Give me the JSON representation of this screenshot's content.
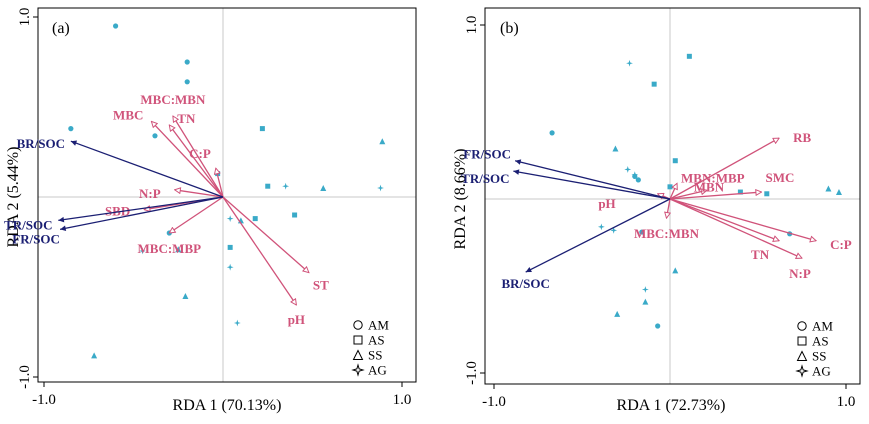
{
  "colors": {
    "env": "#d0537a",
    "resp": "#1b1f73",
    "points": "#3aaac8"
  },
  "chart_data": [
    {
      "type": "scatter",
      "panel_label": "(a)",
      "xlabel": "RDA 1 (70.13%)",
      "ylabel": "RDA 2 (5.44%)",
      "xlim": [
        -1.0,
        1.0
      ],
      "ylim": [
        -1.0,
        1.0
      ],
      "xticks": [
        -1.0,
        1.0
      ],
      "xtick_labels": [
        "-1.0",
        "1.0"
      ],
      "yticks": [
        -1.0,
        1.0
      ],
      "ytick_labels": [
        "-1.0",
        "1.0"
      ],
      "legend": {
        "position": "bottom-right",
        "entries": [
          {
            "label": "AM",
            "marker": "circle"
          },
          {
            "label": "AS",
            "marker": "square"
          },
          {
            "label": "SS",
            "marker": "triangle"
          },
          {
            "label": "AG",
            "marker": "star"
          }
        ]
      },
      "env_arrows": [
        {
          "label": "MBC:MBN",
          "x": -0.28,
          "y": 0.45
        },
        {
          "label": "MBC",
          "x": -0.4,
          "y": 0.42
        },
        {
          "label": "TN",
          "x": -0.3,
          "y": 0.4
        },
        {
          "label": "C:P",
          "x": -0.04,
          "y": 0.16
        },
        {
          "label": "N:P",
          "x": -0.27,
          "y": 0.04
        },
        {
          "label": "SBD",
          "x": -0.44,
          "y": -0.07
        },
        {
          "label": "MBC:MBP",
          "x": -0.3,
          "y": -0.2
        },
        {
          "label": "ST",
          "x": 0.48,
          "y": -0.42
        },
        {
          "label": "pH",
          "x": 0.41,
          "y": -0.6
        }
      ],
      "response_arrows": [
        {
          "label": "BR/SOC",
          "x": -0.85,
          "y": 0.31
        },
        {
          "label": "TR/SOC",
          "x": -0.92,
          "y": -0.13
        },
        {
          "label": "FR/SOC",
          "x": -0.91,
          "y": -0.18
        }
      ],
      "points": [
        {
          "group": "AM",
          "x": -0.6,
          "y": 0.95
        },
        {
          "group": "AM",
          "x": -0.2,
          "y": 0.75
        },
        {
          "group": "AM",
          "x": -0.2,
          "y": 0.64
        },
        {
          "group": "AM",
          "x": -0.85,
          "y": 0.38
        },
        {
          "group": "AM",
          "x": -0.38,
          "y": 0.34
        },
        {
          "group": "AM",
          "x": -0.3,
          "y": -0.2
        },
        {
          "group": "AS",
          "x": 0.22,
          "y": 0.38
        },
        {
          "group": "AS",
          "x": -0.03,
          "y": 0.13
        },
        {
          "group": "AS",
          "x": 0.25,
          "y": 0.06
        },
        {
          "group": "AS",
          "x": 0.4,
          "y": -0.1
        },
        {
          "group": "AS",
          "x": 0.18,
          "y": -0.12
        },
        {
          "group": "AS",
          "x": 0.04,
          "y": -0.28
        },
        {
          "group": "SS",
          "x": 0.89,
          "y": 0.31
        },
        {
          "group": "SS",
          "x": 0.56,
          "y": 0.05
        },
        {
          "group": "SS",
          "x": 0.1,
          "y": -0.13
        },
        {
          "group": "SS",
          "x": -0.25,
          "y": -0.29
        },
        {
          "group": "SS",
          "x": -0.21,
          "y": -0.55
        },
        {
          "group": "SS",
          "x": -0.72,
          "y": -0.88
        },
        {
          "group": "AG",
          "x": 0.35,
          "y": 0.06
        },
        {
          "group": "AG",
          "x": 0.88,
          "y": 0.05
        },
        {
          "group": "AG",
          "x": 0.04,
          "y": -0.12
        },
        {
          "group": "AG",
          "x": -0.45,
          "y": -0.3
        },
        {
          "group": "AG",
          "x": 0.04,
          "y": -0.39
        },
        {
          "group": "AG",
          "x": 0.08,
          "y": -0.7
        }
      ]
    },
    {
      "type": "scatter",
      "panel_label": "(b)",
      "xlabel": "RDA 1 (72.73%)",
      "ylabel": "RDA 2 (8.66%)",
      "xlim": [
        -1.0,
        1.0
      ],
      "ylim": [
        -1.0,
        1.0
      ],
      "xticks": [
        -1.0,
        1.0
      ],
      "xtick_labels": [
        "-1.0",
        "1.0"
      ],
      "yticks": [
        -1.0,
        1.0
      ],
      "ytick_labels": [
        "-1.0",
        "1.0"
      ],
      "legend": {
        "position": "bottom-right",
        "entries": [
          {
            "label": "AM",
            "marker": "circle"
          },
          {
            "label": "AS",
            "marker": "square"
          },
          {
            "label": "SS",
            "marker": "triangle"
          },
          {
            "label": "AG",
            "marker": "star"
          }
        ]
      },
      "env_arrows": [
        {
          "label": "RB",
          "x": 0.62,
          "y": 0.35
        },
        {
          "label": "MBN:MBP",
          "x": 0.04,
          "y": 0.09
        },
        {
          "label": "MBN",
          "x": 0.21,
          "y": 0.05
        },
        {
          "label": "SMC",
          "x": 0.52,
          "y": 0.04
        },
        {
          "label": "pH",
          "x": -0.07,
          "y": 0.03
        },
        {
          "label": "MBC:MBN",
          "x": -0.02,
          "y": -0.11
        },
        {
          "label": "TN",
          "x": 0.62,
          "y": -0.24
        },
        {
          "label": "C:P",
          "x": 0.83,
          "y": -0.24
        },
        {
          "label": "N:P",
          "x": 0.75,
          "y": -0.34
        }
      ],
      "response_arrows": [
        {
          "label": "FR/SOC",
          "x": -0.88,
          "y": 0.22
        },
        {
          "label": "TR/SOC",
          "x": -0.89,
          "y": 0.16
        },
        {
          "label": "BR/SOC",
          "x": -0.82,
          "y": -0.42
        }
      ],
      "points": [
        {
          "group": "AM",
          "x": -0.67,
          "y": 0.38
        },
        {
          "group": "AM",
          "x": -0.2,
          "y": 0.13
        },
        {
          "group": "AM",
          "x": -0.18,
          "y": 0.11
        },
        {
          "group": "AM",
          "x": -0.16,
          "y": -0.19
        },
        {
          "group": "AM",
          "x": 0.68,
          "y": -0.2
        },
        {
          "group": "AM",
          "x": -0.07,
          "y": -0.73
        },
        {
          "group": "AS",
          "x": 0.11,
          "y": 0.82
        },
        {
          "group": "AS",
          "x": -0.09,
          "y": 0.66
        },
        {
          "group": "AS",
          "x": 0.03,
          "y": 0.22
        },
        {
          "group": "AS",
          "x": 0.0,
          "y": 0.07
        },
        {
          "group": "AS",
          "x": 0.4,
          "y": 0.04
        },
        {
          "group": "AS",
          "x": 0.55,
          "y": 0.03
        },
        {
          "group": "SS",
          "x": -0.31,
          "y": 0.29
        },
        {
          "group": "SS",
          "x": 0.9,
          "y": 0.06
        },
        {
          "group": "SS",
          "x": 0.96,
          "y": 0.04
        },
        {
          "group": "SS",
          "x": 0.03,
          "y": -0.41
        },
        {
          "group": "SS",
          "x": -0.14,
          "y": -0.59
        },
        {
          "group": "SS",
          "x": -0.3,
          "y": -0.66
        },
        {
          "group": "AG",
          "x": -0.23,
          "y": 0.78
        },
        {
          "group": "AG",
          "x": -0.24,
          "y": 0.17
        },
        {
          "group": "AG",
          "x": -0.2,
          "y": 0.14
        },
        {
          "group": "AG",
          "x": -0.39,
          "y": -0.16
        },
        {
          "group": "AG",
          "x": -0.32,
          "y": -0.18
        },
        {
          "group": "AG",
          "x": -0.14,
          "y": -0.52
        }
      ]
    }
  ]
}
